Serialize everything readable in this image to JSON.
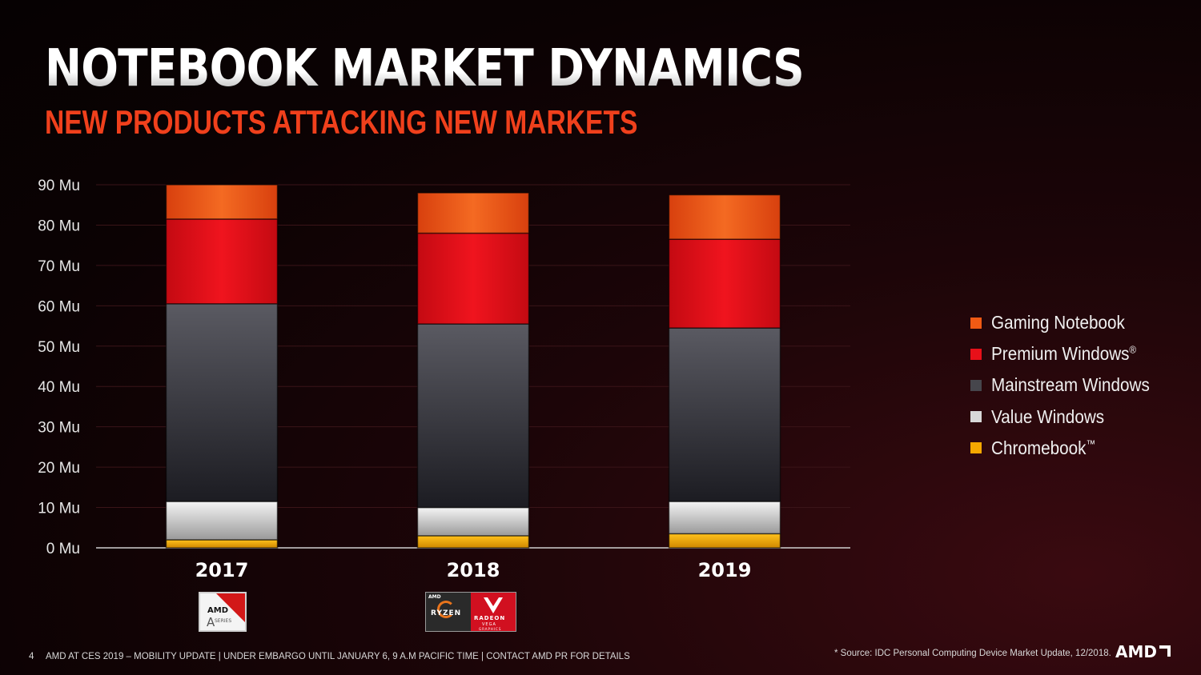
{
  "slide": {
    "title": "NOTEBOOK MARKET DYNAMICS",
    "subtitle": "NEW PRODUCTS ATTACKING NEW MARKETS",
    "page_number": "4",
    "footer_text": "AMD AT CES 2019 – MOBILITY UPDATE  |  UNDER EMBARGO UNTIL JANUARY 6, 9 A.M PACIFIC TIME  |  CONTACT AMD PR FOR DETAILS",
    "source_text": "* Source: IDC Personal Computing Device Market Update, 12/2018.",
    "logo_text": "AMD"
  },
  "badges": {
    "a_series": {
      "brand": "AMD",
      "letter": "A",
      "text": "SERIES"
    },
    "ryzen_radeon": {
      "brand": "AMD",
      "ryzen": "RYZEN",
      "radeon": "RADEON",
      "vega": "VEGA",
      "graphics": "GRAPHICS"
    }
  },
  "chart_data": {
    "type": "bar",
    "stacked": true,
    "title": "",
    "xlabel": "",
    "ylabel": "",
    "categories": [
      "2017",
      "2018",
      "2019"
    ],
    "ylim": [
      0,
      90
    ],
    "ytick_labels": [
      "0 Mu",
      "10 Mu",
      "20 Mu",
      "30 Mu",
      "40 Mu",
      "50 Mu",
      "60 Mu",
      "70 Mu",
      "80 Mu",
      "90 Mu"
    ],
    "grid": true,
    "legend_position": "right",
    "series": [
      {
        "name": "Chromebook",
        "values": [
          2,
          3,
          3.5
        ],
        "color": "#f5a800"
      },
      {
        "name": "Value Windows",
        "values": [
          9.5,
          7,
          8
        ],
        "color": "#d8d8d8"
      },
      {
        "name": "Mainstream Windows",
        "values": [
          49,
          45.5,
          43
        ],
        "color": "#46464c"
      },
      {
        "name": "Premium Windows",
        "values": [
          21,
          22.5,
          22
        ],
        "color": "#e81019"
      },
      {
        "name": "Gaming Notebook",
        "values": [
          8.5,
          10,
          11
        ],
        "color": "#f05a14"
      }
    ]
  },
  "legend": [
    {
      "label": "Gaming Notebook",
      "mark": "",
      "color": "#f05a14"
    },
    {
      "label": "Premium Windows",
      "mark": "®",
      "color": "#e81019"
    },
    {
      "label": "Mainstream Windows",
      "mark": "",
      "color": "#46464c"
    },
    {
      "label": "Value Windows",
      "mark": "",
      "color": "#d8d8d8"
    },
    {
      "label": "Chromebook",
      "mark": "™",
      "color": "#f5a800"
    }
  ]
}
